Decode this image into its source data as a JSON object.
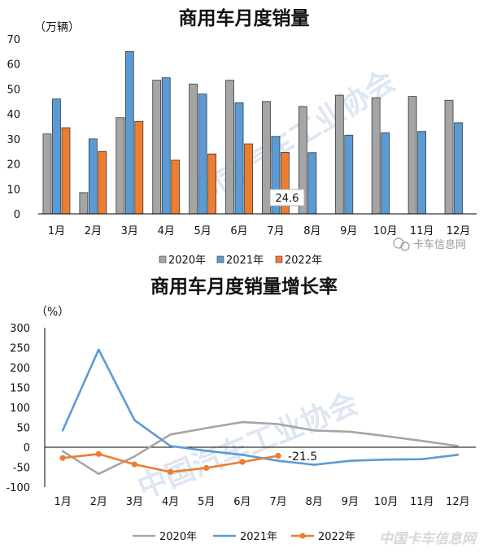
{
  "watermark": {
    "wechat": "卡车信息网",
    "corner": "中国卡车信息网",
    "association": "中国汽车工业协会"
  },
  "colors": {
    "s2020": "#a5a5a5",
    "s2021": "#5b9bd5",
    "s2022": "#ed7d31",
    "axis": "#000000"
  },
  "chart_data": [
    {
      "type": "bar",
      "title": "商用车月度销量",
      "ylabel": "（万辆）",
      "categories": [
        "1月",
        "2月",
        "3月",
        "4月",
        "5月",
        "6月",
        "7月",
        "8月",
        "9月",
        "10月",
        "11月",
        "12月"
      ],
      "ylim": [
        0,
        70
      ],
      "yticks": [
        "0",
        "10",
        "20",
        "30",
        "40",
        "50",
        "60",
        "70"
      ],
      "legend_position": "bottom",
      "grid": false,
      "series": [
        {
          "name": "2020年",
          "color": "#a5a5a5",
          "values": [
            32,
            8.5,
            38.5,
            53.5,
            52,
            53.5,
            45,
            43,
            47.5,
            46.5,
            47,
            45.5
          ]
        },
        {
          "name": "2021年",
          "color": "#5b9bd5",
          "values": [
            46,
            30,
            65,
            54.5,
            48,
            44.5,
            31,
            24.5,
            31.5,
            32.5,
            33,
            36.5
          ]
        },
        {
          "name": "2022年",
          "color": "#ed7d31",
          "values": [
            34.5,
            25,
            37,
            21.5,
            24,
            28,
            24.6,
            null,
            null,
            null,
            null,
            null
          ]
        }
      ],
      "annotations": [
        {
          "text": "24.6",
          "category": "7月"
        }
      ]
    },
    {
      "type": "line",
      "title": "商用车月度销量增长率",
      "ylabel": "（%）",
      "categories": [
        "1月",
        "2月",
        "3月",
        "4月",
        "5月",
        "6月",
        "7月",
        "8月",
        "9月",
        "10月",
        "11月",
        "12月"
      ],
      "ylim": [
        -100,
        300
      ],
      "yticks": [
        "300",
        "250",
        "200",
        "150",
        "100",
        "50",
        "0",
        "-50",
        "-100"
      ],
      "legend_position": "bottom",
      "grid": false,
      "series": [
        {
          "name": "2020年",
          "color": "#a5a5a5",
          "marker": false,
          "values": [
            -10,
            -67,
            -23,
            32,
            48,
            63,
            58,
            42,
            39,
            28,
            16,
            3
          ]
        },
        {
          "name": "2021年",
          "color": "#5b9bd5",
          "marker": false,
          "values": [
            42,
            245,
            68,
            3,
            -9,
            -19,
            -34,
            -44,
            -34,
            -31,
            -30,
            -19
          ]
        },
        {
          "name": "2022年",
          "color": "#ed7d31",
          "marker": true,
          "values": [
            -27,
            -17,
            -43,
            -62,
            -52,
            -37,
            -21.5,
            null,
            null,
            null,
            null,
            null
          ]
        }
      ],
      "annotations": [
        {
          "text": "-21.5",
          "category": "7月"
        }
      ]
    }
  ]
}
